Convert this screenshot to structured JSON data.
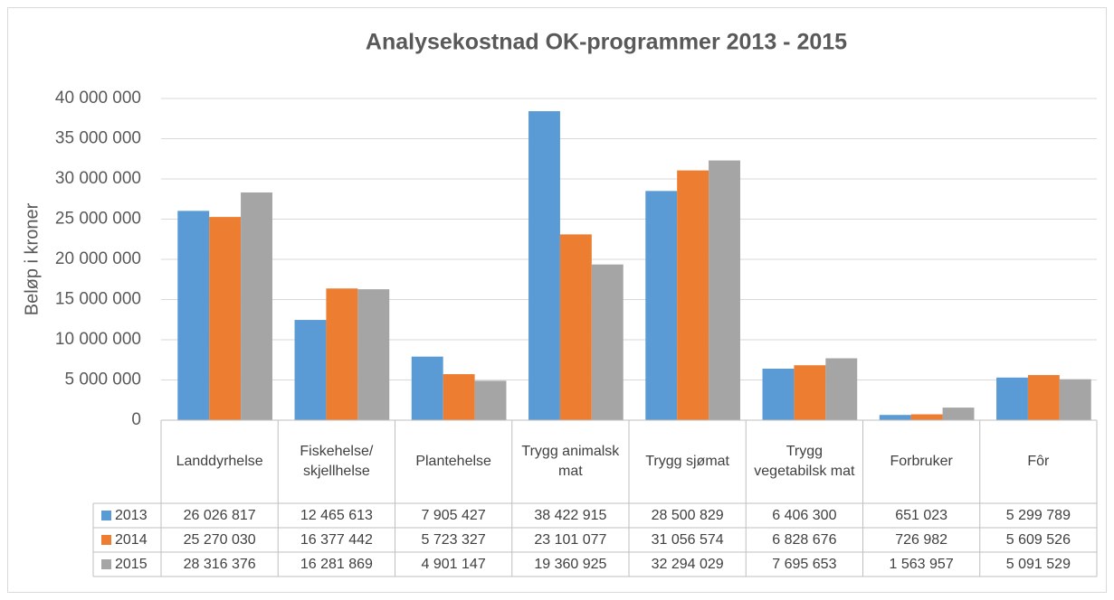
{
  "chart_data": {
    "type": "bar",
    "title": "Analysekostnad OK-programmer 2013 - 2015",
    "y_label": "Beløp i kroner",
    "categories": [
      "Landdyrhelse",
      "Fiskehelse/ skjellhelse",
      "Plantehelse",
      "Trygg animalsk mat",
      "Trygg sjømat",
      "Trygg vegetabilsk mat",
      "Forbruker",
      "Fôr"
    ],
    "series": [
      {
        "name": "2013",
        "color": "#5b9bd5",
        "values": [
          26026817,
          12465613,
          7905427,
          38422915,
          28500829,
          6406300,
          651023,
          5299789
        ],
        "value_labels": [
          "26 026 817",
          "12 465 613",
          "7 905 427",
          "38 422 915",
          "28 500 829",
          "6 406 300",
          "651 023",
          "5 299 789"
        ]
      },
      {
        "name": "2014",
        "color": "#ed7d31",
        "values": [
          25270030,
          16377442,
          5723327,
          23101077,
          31056574,
          6828676,
          726982,
          5609526
        ],
        "value_labels": [
          "25 270 030",
          "16 377 442",
          "5 723 327",
          "23 101 077",
          "31 056 574",
          "6 828 676",
          "726 982",
          "5 609 526"
        ]
      },
      {
        "name": "2015",
        "color": "#a5a5a5",
        "values": [
          28316376,
          16281869,
          4901147,
          19360925,
          32294029,
          7695653,
          1563957,
          5091529
        ],
        "value_labels": [
          "28 316 376",
          "16 281 869",
          "4 901 147",
          "19 360 925",
          "32 294 029",
          "7 695 653",
          "1 563 957",
          "5 091 529"
        ]
      }
    ],
    "ylim": [
      0,
      40000000
    ],
    "yticks": [
      0,
      {
        "value": 5000000,
        "label": "5 000 000"
      },
      {
        "value": 10000000,
        "label": "10 000 000"
      },
      {
        "value": 15000000,
        "label": "15 000 000"
      },
      {
        "value": 20000000,
        "label": "20 000 000"
      },
      {
        "value": 25000000,
        "label": "25 000 000"
      },
      {
        "value": 30000000,
        "label": "30 000 000"
      },
      {
        "value": 35000000,
        "label": "35 000 000"
      },
      {
        "value": 40000000,
        "label": "40 000 000"
      }
    ],
    "grid": true
  }
}
